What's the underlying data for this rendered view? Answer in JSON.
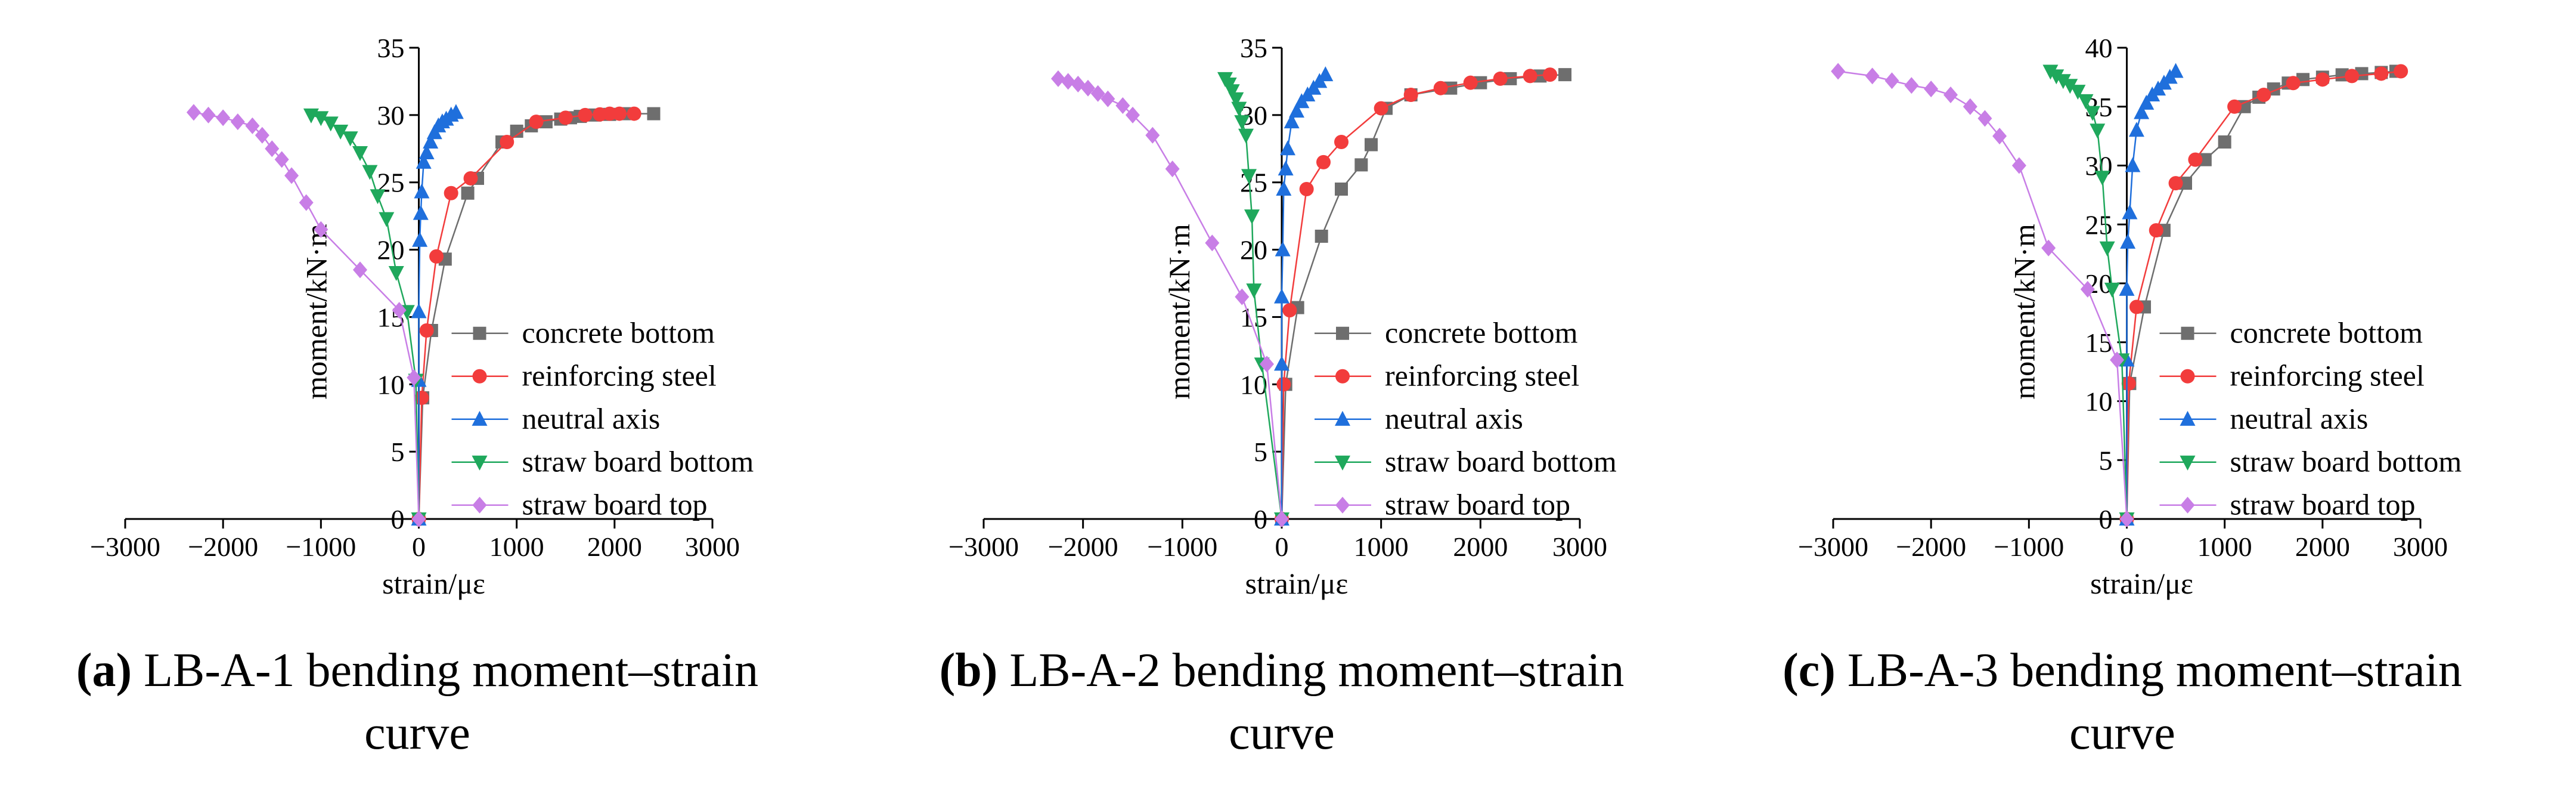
{
  "chart_data": [
    {
      "type": "line",
      "xlabel": "strain/με",
      "ylabel": "moment/kN·m",
      "xlim": [
        -3000,
        3000
      ],
      "ylim": [
        0,
        35
      ],
      "xticks": [
        -3000,
        -2000,
        -1000,
        0,
        1000,
        2000,
        3000
      ],
      "yticks": [
        0,
        5,
        10,
        15,
        20,
        25,
        30,
        35
      ],
      "grid": false,
      "legend_position": "right",
      "caption_tag": "(a)",
      "caption_line1": "LB-A-1 bending moment–strain",
      "caption_line2": "curve",
      "series": [
        {
          "name": "concrete bottom",
          "color": "#6e6e6e",
          "marker": "square",
          "x": [
            0,
            40,
            130,
            270,
            500,
            600,
            850,
            1000,
            1150,
            1300,
            1450,
            1550,
            1650,
            1800,
            1950,
            2100,
            2400
          ],
          "y": [
            0,
            9,
            14,
            19.3,
            24.2,
            25.3,
            28,
            28.8,
            29.2,
            29.5,
            29.7,
            29.8,
            29.9,
            30,
            30.05,
            30.1,
            30.1
          ]
        },
        {
          "name": "reinforcing steel",
          "color": "#f23c3c",
          "marker": "circle",
          "x": [
            0,
            30,
            80,
            180,
            330,
            530,
            900,
            1200,
            1500,
            1700,
            1850,
            1950,
            2050,
            2200
          ],
          "y": [
            0,
            9,
            14,
            19.5,
            24.2,
            25.3,
            28,
            29.5,
            29.8,
            30,
            30.05,
            30.1,
            30.1,
            30.1
          ]
        },
        {
          "name": "neutral axis",
          "color": "#1f6fdc",
          "marker": "triangle-up",
          "x": [
            0,
            0,
            0,
            10,
            20,
            30,
            50,
            80,
            120,
            160,
            200,
            240,
            280,
            330,
            380
          ],
          "y": [
            0,
            10.3,
            15.4,
            20.7,
            22.7,
            24.3,
            26.5,
            27.2,
            28,
            28.7,
            29.2,
            29.5,
            29.7,
            30,
            30.2
          ]
        },
        {
          "name": "straw board bottom",
          "color": "#1fa85c",
          "marker": "triangle-down",
          "x": [
            0,
            -30,
            -120,
            -230,
            -330,
            -420,
            -500,
            -600,
            -700,
            -800,
            -900,
            -1000,
            -1100
          ],
          "y": [
            0,
            10.3,
            15.4,
            18.3,
            22.3,
            24,
            25.8,
            27.2,
            28.3,
            28.8,
            29.4,
            29.8,
            30
          ]
        },
        {
          "name": "straw board top",
          "color": "#c87ee6",
          "marker": "diamond",
          "x": [
            0,
            -50,
            -200,
            -600,
            -1000,
            -1150,
            -1300,
            -1400,
            -1500,
            -1600,
            -1700,
            -1850,
            -2000,
            -2150,
            -2300
          ],
          "y": [
            0,
            10.5,
            15.5,
            18.5,
            21.5,
            23.5,
            25.5,
            26.7,
            27.5,
            28.5,
            29.2,
            29.5,
            29.8,
            30,
            30.2
          ]
        }
      ]
    },
    {
      "type": "line",
      "xlabel": "strain/με",
      "ylabel": "moment/kN·m",
      "xlim": [
        -3000,
        3000
      ],
      "ylim": [
        0,
        35
      ],
      "xticks": [
        -3000,
        -2000,
        -1000,
        0,
        1000,
        2000,
        3000
      ],
      "yticks": [
        0,
        5,
        10,
        15,
        20,
        25,
        30,
        35
      ],
      "grid": false,
      "legend_position": "right",
      "caption_tag": "(b)",
      "caption_line1": "LB-A-2 bending moment–strain",
      "caption_line2": "curve",
      "series": [
        {
          "name": "concrete bottom",
          "color": "#6e6e6e",
          "marker": "square",
          "x": [
            0,
            40,
            160,
            400,
            600,
            800,
            900,
            1050,
            1300,
            1700,
            2000,
            2300,
            2600,
            2850
          ],
          "y": [
            0,
            10,
            15.7,
            21,
            24.5,
            26.3,
            27.8,
            30.5,
            31.5,
            32,
            32.4,
            32.7,
            32.9,
            33
          ]
        },
        {
          "name": "reinforcing steel",
          "color": "#f23c3c",
          "marker": "circle",
          "x": [
            0,
            20,
            80,
            250,
            420,
            600,
            1000,
            1300,
            1600,
            1900,
            2200,
            2500,
            2700
          ],
          "y": [
            0,
            10,
            15.5,
            24.5,
            26.5,
            28,
            30.5,
            31.5,
            32,
            32.4,
            32.7,
            32.9,
            33
          ]
        },
        {
          "name": "neutral axis",
          "color": "#1f6fdc",
          "marker": "triangle-up",
          "x": [
            0,
            0,
            0,
            10,
            20,
            40,
            60,
            100,
            150,
            200,
            260,
            320,
            380,
            440
          ],
          "y": [
            0,
            11.5,
            16.5,
            20,
            24.5,
            26,
            27.5,
            29.5,
            30.3,
            31,
            31.5,
            32,
            32.5,
            33
          ]
        },
        {
          "name": "straw board bottom",
          "color": "#1fa85c",
          "marker": "triangle-down",
          "x": [
            0,
            -200,
            -280,
            -300,
            -330,
            -360,
            -400,
            -430,
            -460,
            -500,
            -530,
            -570
          ],
          "y": [
            0,
            11.5,
            17,
            22.5,
            25.5,
            28.5,
            29.5,
            30.5,
            31.2,
            31.8,
            32.3,
            32.7
          ]
        },
        {
          "name": "straw board top",
          "color": "#c87ee6",
          "marker": "diamond",
          "x": [
            0,
            -150,
            -400,
            -700,
            -1100,
            -1300,
            -1500,
            -1600,
            -1750,
            -1850,
            -1950,
            -2050,
            -2150,
            -2250
          ],
          "y": [
            0,
            11.5,
            16.5,
            20.5,
            26,
            28.5,
            30,
            30.7,
            31.2,
            31.6,
            32,
            32.3,
            32.5,
            32.7
          ]
        }
      ]
    },
    {
      "type": "line",
      "xlabel": "strain/με",
      "ylabel": "moment/kN·m",
      "xlim": [
        -3000,
        3000
      ],
      "ylim": [
        0,
        40
      ],
      "xticks": [
        -3000,
        -2000,
        -1000,
        0,
        1000,
        2000,
        3000
      ],
      "yticks": [
        0,
        5,
        10,
        15,
        20,
        25,
        30,
        35,
        40
      ],
      "grid": false,
      "legend_position": "right",
      "caption_tag": "(c)",
      "caption_line1": "LB-A-3 bending moment–strain",
      "caption_line2": "curve",
      "series": [
        {
          "name": "concrete bottom",
          "color": "#6e6e6e",
          "marker": "square",
          "x": [
            0,
            30,
            180,
            380,
            600,
            800,
            1000,
            1200,
            1350,
            1500,
            1650,
            1800,
            2000,
            2200,
            2400,
            2600,
            2750
          ],
          "y": [
            0,
            11.5,
            18,
            24.5,
            28.5,
            30.5,
            32,
            35,
            35.8,
            36.5,
            37,
            37.3,
            37.5,
            37.7,
            37.8,
            37.9,
            38
          ]
        },
        {
          "name": "reinforcing steel",
          "color": "#f23c3c",
          "marker": "circle",
          "x": [
            0,
            20,
            100,
            300,
            500,
            700,
            1100,
            1400,
            1700,
            2000,
            2300,
            2600,
            2800
          ],
          "y": [
            0,
            11.5,
            18,
            24.5,
            28.5,
            30.5,
            35,
            36,
            37,
            37.3,
            37.6,
            37.8,
            38
          ]
        },
        {
          "name": "neutral axis",
          "color": "#1f6fdc",
          "marker": "triangle-up",
          "x": [
            0,
            0,
            0,
            10,
            30,
            60,
            100,
            150,
            200,
            260,
            320,
            380,
            440,
            500
          ],
          "y": [
            0,
            13.5,
            19.5,
            23.5,
            26,
            30,
            33,
            34.5,
            35.3,
            36,
            36.5,
            37,
            37.5,
            38
          ]
        },
        {
          "name": "straw board bottom",
          "color": "#1fa85c",
          "marker": "triangle-down",
          "x": [
            0,
            -50,
            -150,
            -200,
            -250,
            -300,
            -350,
            -420,
            -500,
            -580,
            -650,
            -720,
            -780
          ],
          "y": [
            0,
            13.5,
            19.5,
            23,
            29,
            33,
            34.5,
            35.5,
            36.3,
            36.8,
            37.2,
            37.6,
            38
          ]
        },
        {
          "name": "straw board top",
          "color": "#c87ee6",
          "marker": "diamond",
          "x": [
            0,
            -100,
            -400,
            -800,
            -1100,
            -1300,
            -1450,
            -1600,
            -1800,
            -2000,
            -2200,
            -2400,
            -2600,
            -2950
          ],
          "y": [
            0,
            13.5,
            19.5,
            23,
            30,
            32.5,
            34,
            35,
            36,
            36.5,
            36.8,
            37.2,
            37.6,
            38
          ]
        }
      ]
    }
  ]
}
